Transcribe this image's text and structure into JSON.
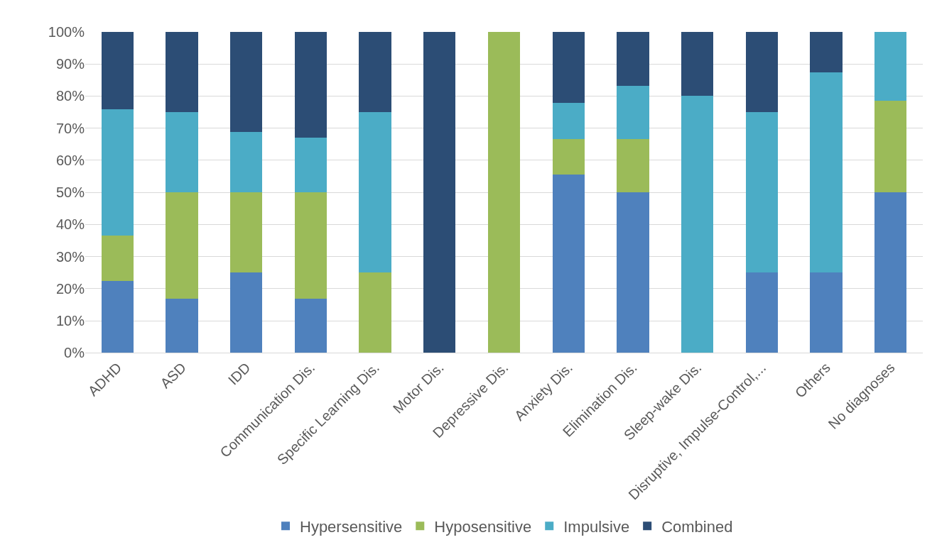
{
  "chart_data": {
    "type": "bar",
    "stacked": true,
    "categories": [
      "ADHD",
      "ASD",
      "IDD",
      "Communication Dis.",
      "Specific Learning Dis.",
      "Motor Dis.",
      "Depressive Dis.",
      "Anxiety Dis.",
      "Elimination Dis.",
      "Sleep-wake Dis.",
      "Disruptive, Impulse-Control,...",
      "Others",
      "No diagnoses"
    ],
    "series": [
      {
        "name": "Hypersensitive",
        "color": "#4f81bd",
        "values": [
          22.5,
          17,
          25,
          17,
          0,
          0,
          0,
          55.6,
          50,
          0,
          25,
          25,
          50
        ]
      },
      {
        "name": "Hyposensitive",
        "color": "#9bbb59",
        "values": [
          14,
          33,
          25,
          33,
          25,
          0,
          100,
          11.1,
          16.7,
          0,
          0,
          0,
          28.6
        ]
      },
      {
        "name": "Impulsive",
        "color": "#4bacc6",
        "values": [
          39.5,
          25,
          18.75,
          17,
          50,
          0,
          0,
          11.1,
          16.6,
          80,
          50,
          62.5,
          21.4
        ]
      },
      {
        "name": "Combined",
        "color": "#2c4d75",
        "values": [
          24,
          25,
          31.25,
          33,
          25,
          100,
          0,
          22.2,
          16.7,
          20,
          25,
          12.5,
          0
        ]
      }
    ],
    "ylim": [
      0,
      100
    ],
    "yticks": [
      {
        "value": 0,
        "label": "0%"
      },
      {
        "value": 10,
        "label": "10%"
      },
      {
        "value": 20,
        "label": "20%"
      },
      {
        "value": 30,
        "label": "30%"
      },
      {
        "value": 40,
        "label": "40%"
      },
      {
        "value": 50,
        "label": "50%"
      },
      {
        "value": 60,
        "label": "60%"
      },
      {
        "value": 70,
        "label": "70%"
      },
      {
        "value": 80,
        "label": "80%"
      },
      {
        "value": 90,
        "label": "90%"
      },
      {
        "value": 100,
        "label": "100%"
      }
    ],
    "grid": "y",
    "legend": "bottom"
  }
}
